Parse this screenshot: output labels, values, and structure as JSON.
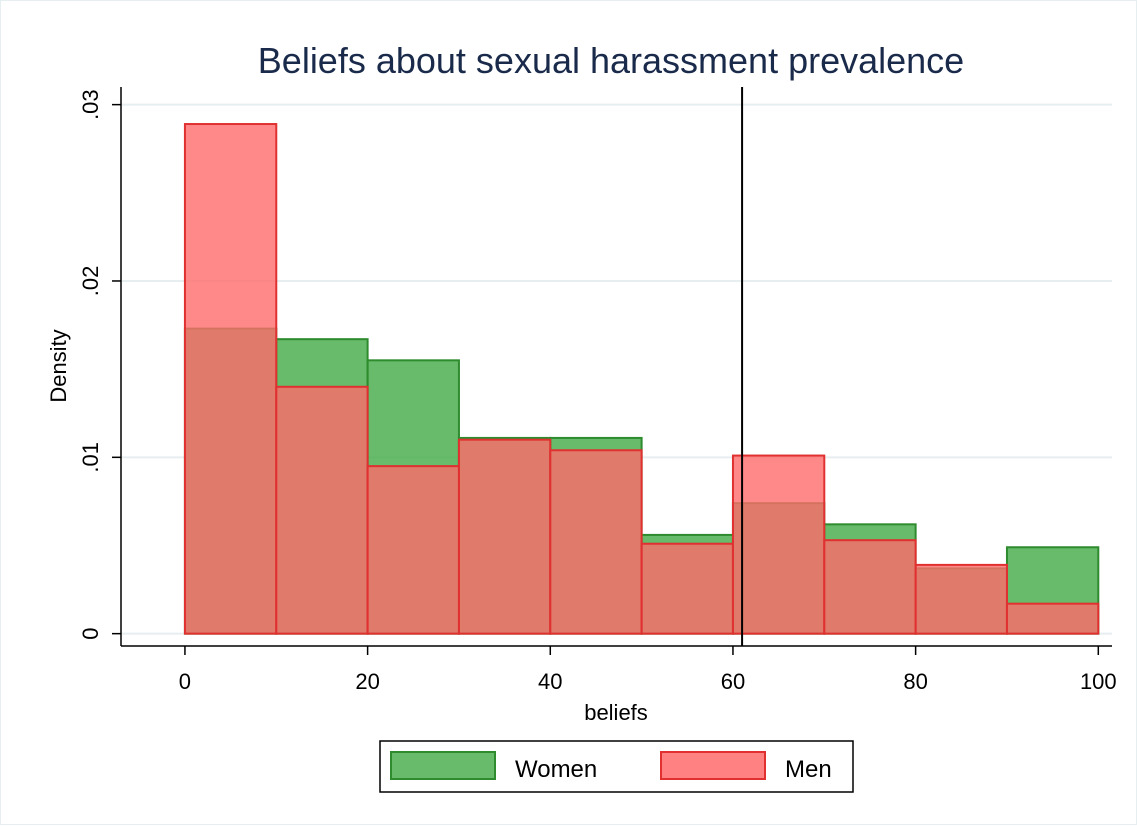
{
  "chart_data": {
    "type": "bar",
    "subtype": "overlaid-histogram",
    "title": "Beliefs about sexual harassment prevalence",
    "xlabel": "beliefs",
    "ylabel": "Density",
    "xlim": [
      -7,
      101.5
    ],
    "ylim": [
      -0.0007,
      0.031
    ],
    "x_ticks": [
      0,
      20,
      40,
      60,
      80,
      100
    ],
    "x_tick_labels": [
      "0",
      "20",
      "40",
      "60",
      "80",
      "100"
    ],
    "y_ticks": [
      0,
      0.01,
      0.02,
      0.03
    ],
    "y_tick_labels": [
      "0",
      ".01",
      ".02",
      ".03"
    ],
    "grid": "horizontal",
    "bins": [
      [
        0,
        10
      ],
      [
        10,
        20
      ],
      [
        20,
        30
      ],
      [
        30,
        40
      ],
      [
        40,
        50
      ],
      [
        50,
        60
      ],
      [
        60,
        70
      ],
      [
        70,
        80
      ],
      [
        80,
        90
      ],
      [
        90,
        100
      ]
    ],
    "series": [
      {
        "name": "Women",
        "color": "#3a9a3a",
        "values": [
          0.0173,
          0.0167,
          0.0155,
          0.0111,
          0.0111,
          0.0056,
          0.0074,
          0.0062,
          0.0037,
          0.0049
        ]
      },
      {
        "name": "Men",
        "color": "#ff5a5a",
        "values": [
          0.0289,
          0.014,
          0.0095,
          0.011,
          0.0104,
          0.0051,
          0.0101,
          0.0053,
          0.0039,
          0.0017
        ]
      }
    ],
    "reference_line_x": 61,
    "legend_position": "bottom"
  },
  "colors": {
    "women_fill": "#4caf50",
    "women_stroke": "#2e8b2e",
    "men_fill": "#ff6b6b",
    "men_stroke": "#e03030",
    "grid": "#e6eef0",
    "title": "#1a2a4a"
  }
}
